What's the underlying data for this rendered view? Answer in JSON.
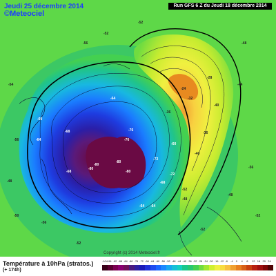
{
  "header": {
    "date": "Jeudi 25 décembre 2014",
    "site": "©Meteociel",
    "run": "Run GFS 6 Z du Jeudi 18 décembre 2014"
  },
  "footer": {
    "title": "Température à 10hPa (stratos.)",
    "subtitle": "(+ 174h)",
    "copyright": "Copyright (c) 2014 Meteociel.fr"
  },
  "legend": {
    "ticks": [
      "-104",
      "-96",
      "-92",
      "-88",
      "-84",
      "-80",
      "-76",
      "-72",
      "-68",
      "-64",
      "-60",
      "-56",
      "-52",
      "-48",
      "-44",
      "-40",
      "-36",
      "-32",
      "-28",
      "-24",
      "-20",
      "-16",
      "-12",
      "-8",
      "-4",
      "0",
      "4",
      "8",
      "12",
      "16",
      "20",
      "24"
    ],
    "colors": [
      "#3a0018",
      "#5a0030",
      "#7a0050",
      "#8a0070",
      "#70105a",
      "#4a1a80",
      "#2e1fa0",
      "#1a1ab8",
      "#1e30d8",
      "#1e4cf0",
      "#1a68ff",
      "#1a88ff",
      "#18a8f0",
      "#16c0d8",
      "#14d0c0",
      "#18c88c",
      "#28c870",
      "#44d050",
      "#70dc40",
      "#a0e830",
      "#d0f030",
      "#f0f040",
      "#f8dc40",
      "#f8c040",
      "#f0a030",
      "#e88020",
      "#d86018",
      "#c84010",
      "#b82010",
      "#a01010",
      "#800808",
      "#500404"
    ]
  },
  "map_labels": [
    "-64",
    "-68",
    "-76",
    "-76",
    "-72",
    "-80",
    "-80",
    "-80",
    "-80",
    "-68",
    "-64",
    "-64",
    "-72",
    "-68",
    "-52",
    "-48",
    "-52",
    "-60",
    "-64",
    "-56",
    "-52",
    "-54",
    "-48",
    "-50",
    "-56",
    "-52",
    "-48",
    "-44",
    "-40",
    "-56",
    "-36",
    "-32",
    "-24",
    "-28",
    "-36",
    "-40",
    "-48",
    "-52",
    "-56",
    "-52",
    "-60"
  ]
}
